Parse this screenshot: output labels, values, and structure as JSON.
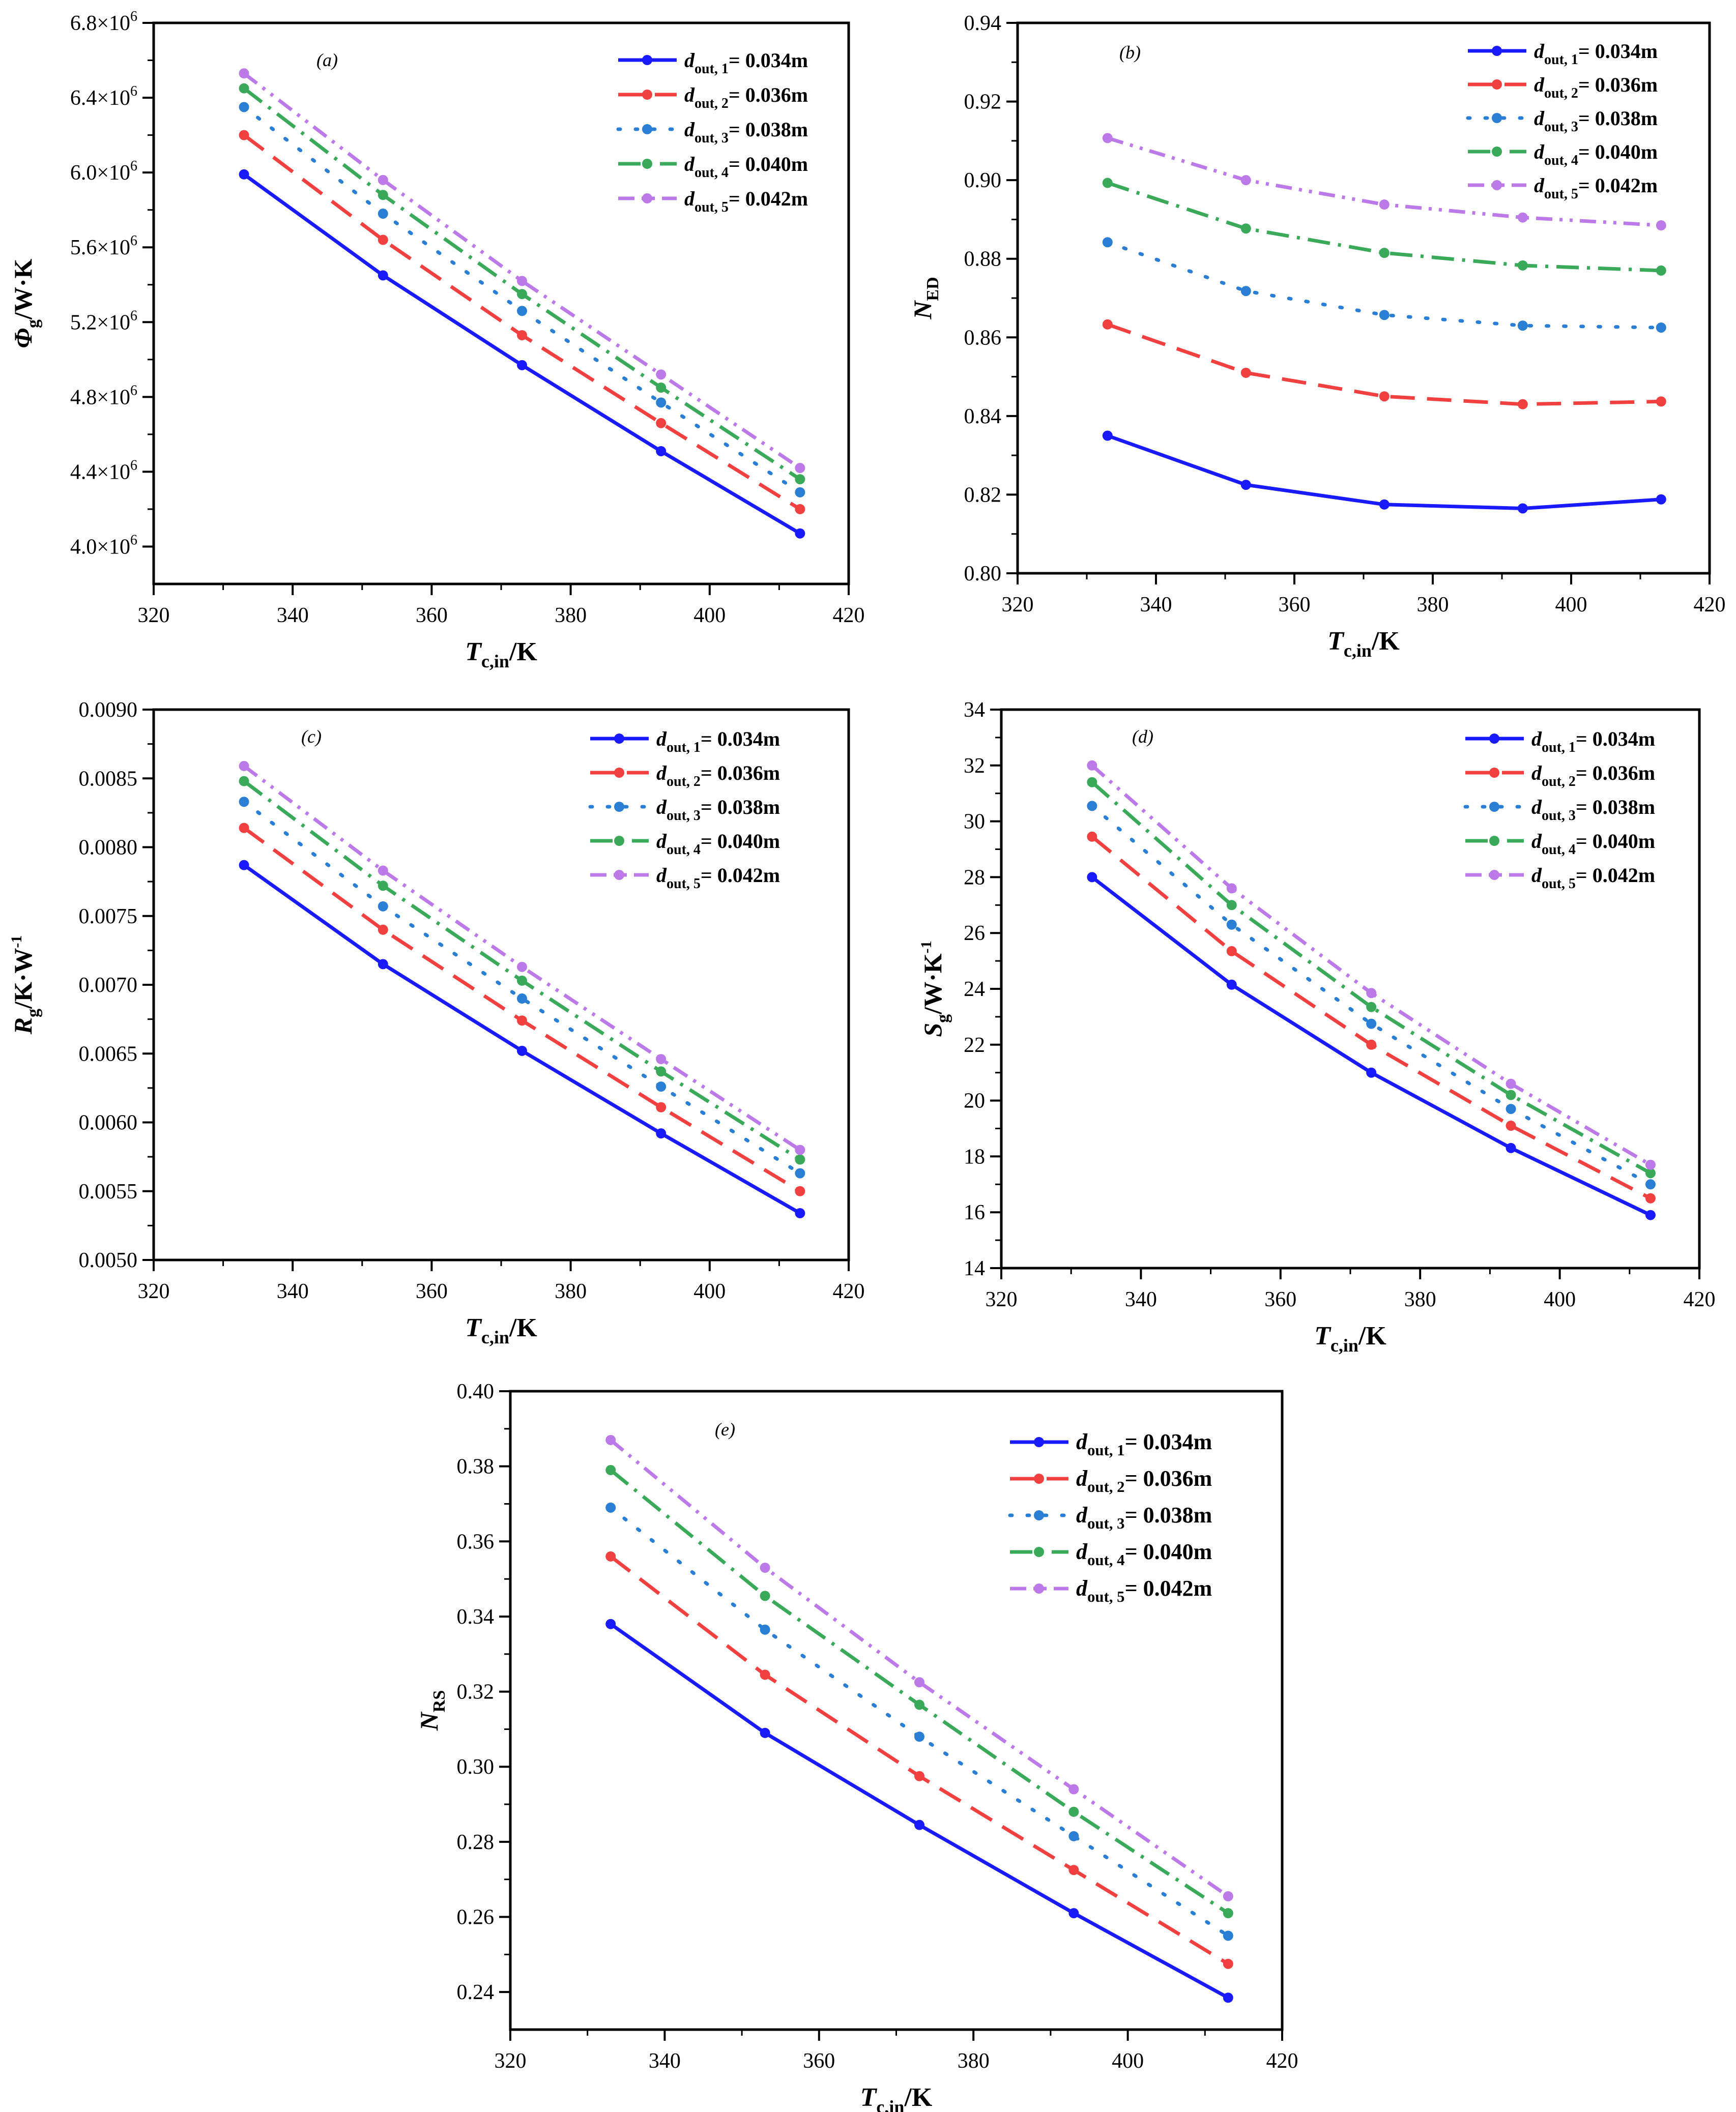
{
  "figure": {
    "x_label_main": "T",
    "x_label_sub": "c,in",
    "x_label_unit": "/K",
    "legend_symbol": "d",
    "legend_sub_prefix": "out, ",
    "legend_suffix": "m",
    "series_colors": [
      "#1a1aff",
      "#f04040",
      "#2a7fd4",
      "#3aaa5a",
      "#bb7ae8"
    ],
    "series_names": [
      "d out,1 = 0.034m",
      "d out,2 = 0.036m",
      "d out,3 = 0.038m",
      "d out,4 = 0.040m",
      "d out,5 = 0.042m"
    ]
  },
  "chart_data": [
    {
      "panel": "(a)",
      "type": "line",
      "x": [
        333,
        353,
        373,
        393,
        413
      ],
      "xlim": [
        320,
        420
      ],
      "xticks": [
        "320",
        "340",
        "360",
        "380",
        "400",
        "420"
      ],
      "ylim": [
        3800000,
        6800000
      ],
      "yticks": [
        {
          "base": "4.0×10",
          "exp": "6"
        },
        {
          "base": "4.4×10",
          "exp": "6"
        },
        {
          "base": "4.8×10",
          "exp": "6"
        },
        {
          "base": "5.2×10",
          "exp": "6"
        },
        {
          "base": "5.6×10",
          "exp": "6"
        },
        {
          "base": "6.0×10",
          "exp": "6"
        },
        {
          "base": "6.4×10",
          "exp": "6"
        },
        {
          "base": "6.8×10",
          "exp": "6"
        }
      ],
      "ylabel_main": "Φ",
      "ylabel_sub": "g",
      "ylabel_unit": "/W·K",
      "legend_labels": [
        "1= 0.034",
        "2= 0.036",
        "3= 0.038",
        "4= 0.040",
        "5= 0.042"
      ],
      "series": [
        {
          "name": "d out,1 = 0.034m",
          "values": [
            5990000,
            5450000,
            4970000,
            4510000,
            4070000
          ]
        },
        {
          "name": "d out,2 = 0.036m",
          "values": [
            6200000,
            5640000,
            5130000,
            4660000,
            4200000
          ]
        },
        {
          "name": "d out,3 = 0.038m",
          "values": [
            6350000,
            5780000,
            5260000,
            4770000,
            4290000
          ]
        },
        {
          "name": "d out,4 = 0.040m",
          "values": [
            6450000,
            5880000,
            5350000,
            4850000,
            4360000
          ]
        },
        {
          "name": "d out,5 = 0.042m",
          "values": [
            6530000,
            5960000,
            5420000,
            4920000,
            4420000
          ]
        }
      ]
    },
    {
      "panel": "(b)",
      "type": "line",
      "x": [
        333,
        353,
        373,
        393,
        413
      ],
      "xlim": [
        320,
        420
      ],
      "xticks": [
        "320",
        "340",
        "360",
        "380",
        "400",
        "420"
      ],
      "ylim": [
        0.8,
        0.94
      ],
      "yticks": [
        {
          "base": "0.80",
          "exp": ""
        },
        {
          "base": "0.82",
          "exp": ""
        },
        {
          "base": "0.84",
          "exp": ""
        },
        {
          "base": "0.86",
          "exp": ""
        },
        {
          "base": "0.88",
          "exp": ""
        },
        {
          "base": "0.90",
          "exp": ""
        },
        {
          "base": "0.92",
          "exp": ""
        },
        {
          "base": "0.94",
          "exp": ""
        }
      ],
      "ylabel_main": "N",
      "ylabel_sub": "ED",
      "ylabel_unit": "",
      "legend_labels": [
        "1= 0.034",
        "2= 0.036",
        "3= 0.038",
        "4= 0.040",
        "5= 0.042"
      ],
      "series": [
        {
          "name": "d out,1 = 0.034m",
          "values": [
            0.835,
            0.8225,
            0.8175,
            0.8165,
            0.8188
          ]
        },
        {
          "name": "d out,2 = 0.036m",
          "values": [
            0.8633,
            0.851,
            0.845,
            0.843,
            0.8437
          ]
        },
        {
          "name": "d out,3 = 0.038m",
          "values": [
            0.8842,
            0.8718,
            0.8657,
            0.863,
            0.8625
          ]
        },
        {
          "name": "d out,4 = 0.040m",
          "values": [
            0.8993,
            0.8877,
            0.8815,
            0.8783,
            0.877
          ]
        },
        {
          "name": "d out,5 = 0.042m",
          "values": [
            0.9107,
            0.9,
            0.8938,
            0.8905,
            0.8885
          ]
        }
      ]
    },
    {
      "panel": "(c)",
      "type": "line",
      "x": [
        333,
        353,
        373,
        393,
        413
      ],
      "xlim": [
        320,
        420
      ],
      "xticks": [
        "320",
        "340",
        "360",
        "380",
        "400",
        "420"
      ],
      "ylim": [
        0.005,
        0.009
      ],
      "yticks": [
        {
          "base": "0.0050",
          "exp": ""
        },
        {
          "base": "0.0055",
          "exp": ""
        },
        {
          "base": "0.0060",
          "exp": ""
        },
        {
          "base": "0.0065",
          "exp": ""
        },
        {
          "base": "0.0070",
          "exp": ""
        },
        {
          "base": "0.0075",
          "exp": ""
        },
        {
          "base": "0.0080",
          "exp": ""
        },
        {
          "base": "0.0085",
          "exp": ""
        },
        {
          "base": "0.0090",
          "exp": ""
        }
      ],
      "ylabel_main": "R",
      "ylabel_sub": "g",
      "ylabel_unit": "/K·W",
      "ylabel_sup": "-1",
      "legend_labels": [
        "1= 0.034",
        "2= 0.036",
        "3= 0.038",
        "4= 0.040",
        "5= 0.042"
      ],
      "series": [
        {
          "name": "d out,1 = 0.034m",
          "values": [
            0.00787,
            0.00715,
            0.00652,
            0.00592,
            0.00534
          ]
        },
        {
          "name": "d out,2 = 0.036m",
          "values": [
            0.00814,
            0.0074,
            0.00674,
            0.00611,
            0.0055
          ]
        },
        {
          "name": "d out,3 = 0.038m",
          "values": [
            0.00833,
            0.00757,
            0.0069,
            0.00626,
            0.00563
          ]
        },
        {
          "name": "d out,4 = 0.040m",
          "values": [
            0.00848,
            0.00772,
            0.00703,
            0.00637,
            0.00573
          ]
        },
        {
          "name": "d out,5 = 0.042m",
          "values": [
            0.00859,
            0.00783,
            0.00713,
            0.00646,
            0.0058
          ]
        }
      ]
    },
    {
      "panel": "(d)",
      "type": "line",
      "x": [
        333,
        353,
        373,
        393,
        413
      ],
      "xlim": [
        320,
        420
      ],
      "xticks": [
        "320",
        "340",
        "360",
        "380",
        "400",
        "420"
      ],
      "ylim": [
        14,
        34
      ],
      "yticks": [
        {
          "base": "14",
          "exp": ""
        },
        {
          "base": "16",
          "exp": ""
        },
        {
          "base": "18",
          "exp": ""
        },
        {
          "base": "20",
          "exp": ""
        },
        {
          "base": "22",
          "exp": ""
        },
        {
          "base": "24",
          "exp": ""
        },
        {
          "base": "26",
          "exp": ""
        },
        {
          "base": "28",
          "exp": ""
        },
        {
          "base": "30",
          "exp": ""
        },
        {
          "base": "32",
          "exp": ""
        },
        {
          "base": "34",
          "exp": ""
        }
      ],
      "ylabel_main": "S",
      "ylabel_sub": "g",
      "ylabel_unit": "/W·K",
      "ylabel_sup": "-1",
      "legend_labels": [
        "1= 0.034",
        "2= 0.036",
        "3= 0.038",
        "4= 0.040",
        "5= 0.042"
      ],
      "series": [
        {
          "name": "d out,1 = 0.034m",
          "values": [
            28.0,
            24.15,
            21.0,
            18.3,
            15.9
          ]
        },
        {
          "name": "d out,2 = 0.036m",
          "values": [
            29.45,
            25.35,
            22.0,
            19.1,
            16.5
          ]
        },
        {
          "name": "d out,3 = 0.038m",
          "values": [
            30.55,
            26.3,
            22.75,
            19.7,
            17.0
          ]
        },
        {
          "name": "d out,4 = 0.040m",
          "values": [
            31.4,
            27.0,
            23.35,
            20.2,
            17.4
          ]
        },
        {
          "name": "d out,5 = 0.042m",
          "values": [
            32.0,
            27.6,
            23.85,
            20.6,
            17.7
          ]
        }
      ]
    },
    {
      "panel": "(e)",
      "type": "line",
      "x": [
        333,
        353,
        373,
        393,
        413
      ],
      "xlim": [
        320,
        420
      ],
      "xticks": [
        "320",
        "340",
        "360",
        "380",
        "400",
        "420"
      ],
      "ylim": [
        0.23,
        0.4
      ],
      "yticks": [
        {
          "base": "0.24",
          "exp": ""
        },
        {
          "base": "0.26",
          "exp": ""
        },
        {
          "base": "0.28",
          "exp": ""
        },
        {
          "base": "0.30",
          "exp": ""
        },
        {
          "base": "0.32",
          "exp": ""
        },
        {
          "base": "0.34",
          "exp": ""
        },
        {
          "base": "0.36",
          "exp": ""
        },
        {
          "base": "0.38",
          "exp": ""
        },
        {
          "base": "0.40",
          "exp": ""
        }
      ],
      "ylabel_main": "N",
      "ylabel_sub": "RS",
      "ylabel_unit": "",
      "legend_labels": [
        "1= 0.034",
        "2= 0.036",
        "3= 0.038",
        "4= 0.040",
        "5= 0.042"
      ],
      "series": [
        {
          "name": "d out,1 = 0.034m",
          "values": [
            0.338,
            0.309,
            0.2845,
            0.261,
            0.2385
          ]
        },
        {
          "name": "d out,2 = 0.036m",
          "values": [
            0.356,
            0.3245,
            0.2975,
            0.2725,
            0.2475
          ]
        },
        {
          "name": "d out,3 = 0.038m",
          "values": [
            0.369,
            0.3365,
            0.308,
            0.2815,
            0.255
          ]
        },
        {
          "name": "d out,4 = 0.040m",
          "values": [
            0.379,
            0.3455,
            0.3165,
            0.288,
            0.261
          ]
        },
        {
          "name": "d out,5 = 0.042m",
          "values": [
            0.387,
            0.353,
            0.3225,
            0.294,
            0.2655
          ]
        }
      ]
    }
  ]
}
